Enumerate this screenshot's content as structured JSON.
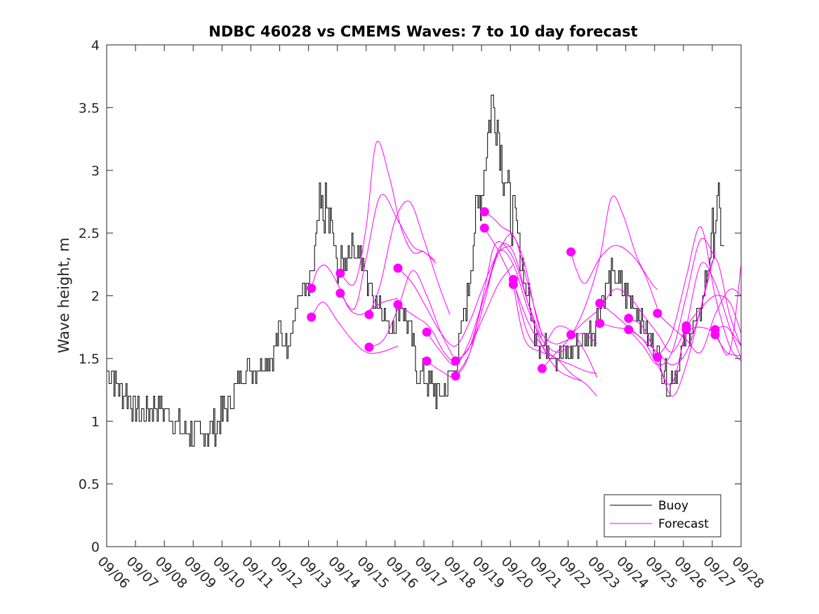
{
  "chart_data": {
    "type": "line",
    "title": "NDBC 46028 vs CMEMS Waves: 7 to 10 day forecast",
    "ylabel": "Wave height, m",
    "xlabel": "",
    "xlim": [
      0,
      22
    ],
    "ylim": [
      0,
      4
    ],
    "yticks": [
      0,
      0.5,
      1,
      1.5,
      2,
      2.5,
      3,
      3.5,
      4
    ],
    "ytick_labels": [
      "0",
      "0.5",
      "1",
      "1.5",
      "2",
      "2.5",
      "3",
      "3.5",
      "4"
    ],
    "xtick_labels": [
      "09/06",
      "09/07",
      "09/08",
      "09/09",
      "09/10",
      "09/11",
      "09/12",
      "09/13",
      "09/14",
      "09/15",
      "09/16",
      "09/17",
      "09/18",
      "09/19",
      "09/20",
      "09/21",
      "09/22",
      "09/23",
      "09/24",
      "09/25",
      "09/26",
      "09/27",
      "09/28"
    ],
    "x_unit": "days since 09/06 00:00",
    "legend": {
      "position": "bottom-right",
      "entries": [
        {
          "label": "Buoy",
          "color": "#000000"
        },
        {
          "label": "Forecast",
          "color": "#ff00ff"
        }
      ]
    },
    "buoy_anchors": [
      [
        0,
        1.4
      ],
      [
        0.25,
        1.35
      ],
      [
        0.5,
        1.25
      ],
      [
        0.75,
        1.2
      ],
      [
        1,
        1.1
      ],
      [
        1.25,
        1.05
      ],
      [
        1.5,
        1.1
      ],
      [
        1.75,
        1.15
      ],
      [
        2,
        1.1
      ],
      [
        2.25,
        1.05
      ],
      [
        2.5,
        0.97
      ],
      [
        2.75,
        0.92
      ],
      [
        3,
        0.9
      ],
      [
        3.25,
        0.88
      ],
      [
        3.5,
        0.9
      ],
      [
        3.75,
        0.95
      ],
      [
        4,
        1.05
      ],
      [
        4.25,
        1.15
      ],
      [
        4.5,
        1.3
      ],
      [
        4.75,
        1.4
      ],
      [
        5,
        1.45
      ],
      [
        5.25,
        1.45
      ],
      [
        5.5,
        1.5
      ],
      [
        5.75,
        1.55
      ],
      [
        6,
        1.7
      ],
      [
        6.25,
        1.65
      ],
      [
        6.5,
        1.85
      ],
      [
        6.75,
        2.05
      ],
      [
        7,
        2.0
      ],
      [
        7.2,
        2.3
      ],
      [
        7.4,
        2.65
      ],
      [
        7.6,
        2.7
      ],
      [
        7.8,
        2.5
      ],
      [
        8,
        2.2
      ],
      [
        8.25,
        2.3
      ],
      [
        8.5,
        2.4
      ],
      [
        8.75,
        2.35
      ],
      [
        9,
        2.15
      ],
      [
        9.25,
        2.0
      ],
      [
        9.5,
        1.95
      ],
      [
        9.75,
        1.75
      ],
      [
        10,
        1.8
      ],
      [
        10.25,
        1.95
      ],
      [
        10.5,
        1.7
      ],
      [
        10.75,
        1.4
      ],
      [
        11,
        1.35
      ],
      [
        11.25,
        1.3
      ],
      [
        11.5,
        1.2
      ],
      [
        11.75,
        1.25
      ],
      [
        12,
        1.4
      ],
      [
        12.25,
        1.65
      ],
      [
        12.5,
        2.0
      ],
      [
        12.75,
        2.5
      ],
      [
        13,
        2.85
      ],
      [
        13.2,
        3.3
      ],
      [
        13.35,
        3.55
      ],
      [
        13.5,
        3.45
      ],
      [
        13.7,
        3.1
      ],
      [
        13.9,
        2.8
      ],
      [
        14.1,
        2.6
      ],
      [
        14.3,
        2.4
      ],
      [
        14.5,
        2.1
      ],
      [
        14.75,
        1.8
      ],
      [
        15,
        1.65
      ],
      [
        15.25,
        1.6
      ],
      [
        15.5,
        1.55
      ],
      [
        15.75,
        1.5
      ],
      [
        16,
        1.55
      ],
      [
        16.25,
        1.6
      ],
      [
        16.5,
        1.65
      ],
      [
        16.75,
        1.7
      ],
      [
        17,
        1.8
      ],
      [
        17.25,
        2.05
      ],
      [
        17.5,
        2.15
      ],
      [
        17.75,
        2.1
      ],
      [
        18,
        2.0
      ],
      [
        18.25,
        1.95
      ],
      [
        18.5,
        1.85
      ],
      [
        18.75,
        1.7
      ],
      [
        19,
        1.6
      ],
      [
        19.25,
        1.45
      ],
      [
        19.5,
        1.3
      ],
      [
        19.75,
        1.4
      ],
      [
        20,
        1.6
      ],
      [
        20.25,
        1.75
      ],
      [
        20.5,
        1.8
      ],
      [
        20.75,
        2.1
      ],
      [
        21,
        2.5
      ],
      [
        21.15,
        2.7
      ],
      [
        21.3,
        2.5
      ],
      [
        21.45,
        2.3
      ]
    ],
    "forecast_series": [
      {
        "x": [
          7.1,
          7.3,
          7.6,
          8.0,
          8.4,
          8.8,
          9.2,
          9.6,
          10.1
        ],
        "y": [
          2.06,
          2.2,
          2.24,
          2.1,
          1.9,
          1.85,
          1.9,
          1.95,
          1.98
        ]
      },
      {
        "x": [
          7.1,
          7.5,
          8.0,
          8.5,
          9.0,
          9.5,
          10.1
        ],
        "y": [
          1.83,
          1.95,
          1.8,
          1.65,
          1.55,
          1.55,
          1.6
        ]
      },
      {
        "x": [
          8.1,
          8.6,
          9.0,
          9.35,
          9.8,
          10.2,
          10.6,
          11.0,
          11.4
        ],
        "y": [
          2.18,
          2.1,
          2.55,
          3.22,
          2.95,
          2.55,
          2.35,
          2.35,
          2.26
        ]
      },
      {
        "x": [
          8.1,
          8.6,
          9.0,
          9.5,
          10.1,
          10.6,
          11.0,
          11.4
        ],
        "y": [
          2.02,
          1.9,
          2.3,
          2.8,
          2.6,
          2.4,
          2.35,
          2.28
        ]
      },
      {
        "x": [
          9.1,
          9.5,
          10.0,
          10.5,
          11.0,
          11.5,
          11.9
        ],
        "y": [
          1.85,
          2.1,
          2.6,
          2.75,
          2.45,
          2.1,
          1.85
        ]
      },
      {
        "x": [
          9.1,
          9.6,
          10.1,
          10.6,
          11.1,
          11.6,
          12.1
        ],
        "y": [
          1.59,
          1.65,
          1.9,
          2.2,
          2.0,
          1.7,
          1.48
        ]
      },
      {
        "x": [
          10.1,
          10.6,
          11.1,
          11.6,
          12.1,
          12.6,
          13.1,
          13.6,
          14.1
        ],
        "y": [
          2.22,
          2.1,
          1.9,
          1.7,
          1.6,
          1.8,
          2.1,
          2.35,
          2.4
        ]
      },
      {
        "x": [
          10.1,
          10.6,
          11.2,
          11.7,
          12.1,
          12.6,
          13.1,
          13.6,
          14.1
        ],
        "y": [
          1.93,
          1.85,
          1.75,
          1.55,
          1.48,
          1.6,
          1.85,
          2.1,
          2.25
        ]
      },
      {
        "x": [
          11.1,
          11.6,
          12.1,
          12.6,
          13.1,
          13.6,
          14.1,
          14.6,
          15.1
        ],
        "y": [
          1.71,
          1.55,
          1.45,
          1.65,
          2.0,
          2.35,
          2.48,
          2.1,
          1.68
        ]
      },
      {
        "x": [
          11.1,
          11.6,
          12.1,
          12.6,
          13.1,
          13.5,
          14.1,
          14.6,
          15.1
        ],
        "y": [
          1.48,
          1.4,
          1.36,
          1.55,
          2.05,
          2.42,
          2.3,
          1.95,
          1.65
        ]
      },
      {
        "x": [
          12.1,
          12.6,
          13.1,
          13.6,
          14.1,
          14.6,
          15.1,
          15.6,
          16.1
        ],
        "y": [
          1.48,
          1.6,
          2.0,
          2.35,
          2.25,
          1.9,
          1.65,
          1.55,
          1.6
        ]
      },
      {
        "x": [
          12.1,
          12.6,
          13.1,
          13.6,
          14.1,
          14.6,
          15.1,
          15.6,
          16.1,
          16.5
        ],
        "y": [
          1.36,
          1.55,
          1.95,
          2.38,
          2.35,
          1.95,
          1.6,
          1.42,
          1.35,
          1.32
        ]
      },
      {
        "x": [
          13.1,
          13.4,
          13.7,
          14.1,
          14.5,
          15.0,
          15.5,
          16.0,
          16.5,
          17.0
        ],
        "y": [
          2.67,
          2.62,
          2.55,
          2.48,
          2.25,
          1.75,
          1.62,
          1.65,
          1.7,
          1.62
        ]
      },
      {
        "x": [
          13.1,
          13.6,
          14.1,
          14.6,
          15.1,
          15.6,
          16.1,
          16.6,
          17.0
        ],
        "y": [
          2.54,
          2.35,
          2.1,
          1.8,
          1.6,
          1.5,
          1.45,
          1.4,
          1.38
        ]
      },
      {
        "x": [
          14.1,
          14.6,
          15.1,
          15.6,
          16.1,
          16.6,
          17.0
        ],
        "y": [
          2.13,
          1.7,
          1.6,
          1.75,
          1.72,
          1.55,
          1.35
        ]
      },
      {
        "x": [
          14.1,
          14.5,
          15.1,
          15.6,
          16.1,
          16.6,
          17.0
        ],
        "y": [
          2.09,
          1.65,
          1.55,
          1.5,
          1.38,
          1.3,
          1.2
        ]
      },
      {
        "x": [
          15.1,
          15.6,
          16.1,
          16.6,
          17.1,
          17.5,
          17.9,
          18.4,
          18.9,
          19.1
        ],
        "y": [
          1.42,
          1.55,
          1.68,
          1.92,
          2.3,
          2.78,
          2.65,
          2.3,
          2.1,
          2.05
        ]
      },
      {
        "x": [
          16.1,
          16.3,
          16.6,
          17.1,
          17.6,
          18.1,
          18.6,
          19.1
        ],
        "y": [
          2.35,
          2.2,
          2.1,
          2.3,
          2.4,
          2.35,
          2.2,
          1.9
        ]
      },
      {
        "x": [
          16.1,
          16.6,
          17.1,
          17.6,
          18.1,
          18.6,
          19.1,
          19.6,
          20.1
        ],
        "y": [
          1.69,
          1.8,
          1.9,
          2.05,
          2.0,
          1.85,
          1.7,
          1.55,
          1.75
        ]
      },
      {
        "x": [
          17.1,
          17.6,
          18.1,
          18.6,
          19.1,
          19.6,
          20.1,
          20.6,
          21.1
        ],
        "y": [
          1.94,
          1.85,
          1.75,
          1.65,
          1.55,
          1.45,
          1.55,
          1.9,
          2.35
        ]
      },
      {
        "x": [
          17.1,
          17.6,
          18.1,
          18.6,
          19.1,
          19.6,
          20.1,
          20.6,
          21.1
        ],
        "y": [
          1.78,
          1.75,
          1.72,
          1.6,
          1.45,
          1.55,
          2.0,
          2.45,
          2.3
        ]
      },
      {
        "x": [
          18.1,
          18.6,
          19.1,
          19.6,
          20.1,
          20.6,
          21.1,
          21.6,
          22.0
        ],
        "y": [
          1.82,
          1.75,
          1.5,
          1.2,
          1.45,
          1.9,
          2.3,
          1.85,
          1.6
        ]
      },
      {
        "x": [
          18.1,
          18.6,
          19.1,
          19.6,
          20.1,
          20.6,
          21.1,
          21.6,
          22.0
        ],
        "y": [
          1.73,
          1.65,
          1.45,
          1.3,
          1.75,
          2.25,
          2.1,
          1.75,
          1.5
        ]
      },
      {
        "x": [
          19.1,
          19.6,
          20.1,
          20.6,
          21.1,
          21.6,
          22.0
        ],
        "y": [
          1.86,
          1.75,
          1.65,
          1.55,
          1.85,
          2.05,
          2.0
        ]
      },
      {
        "x": [
          19.1,
          19.6,
          20.1,
          20.6,
          21.1,
          21.6,
          22.0
        ],
        "y": [
          1.51,
          1.7,
          2.15,
          2.55,
          2.0,
          1.6,
          1.48
        ]
      },
      {
        "x": [
          20.1,
          20.6,
          21.1,
          21.6,
          22.0
        ],
        "y": [
          1.76,
          1.9,
          2.0,
          1.95,
          1.7
        ]
      },
      {
        "x": [
          20.1,
          20.6,
          21.1,
          21.6,
          22.0
        ],
        "y": [
          1.73,
          1.75,
          1.7,
          1.55,
          2.25
        ]
      },
      {
        "x": [
          21.1,
          21.5,
          22.0
        ],
        "y": [
          1.73,
          1.75,
          1.6
        ]
      },
      {
        "x": [
          21.1,
          21.5,
          22.0
        ],
        "y": [
          1.69,
          1.55,
          1.52
        ]
      }
    ],
    "forecast_markers": [
      {
        "x": 7.1,
        "y": 2.06
      },
      {
        "x": 7.1,
        "y": 1.83
      },
      {
        "x": 8.1,
        "y": 2.18
      },
      {
        "x": 8.1,
        "y": 2.02
      },
      {
        "x": 9.1,
        "y": 1.85
      },
      {
        "x": 9.1,
        "y": 1.59
      },
      {
        "x": 10.1,
        "y": 2.22
      },
      {
        "x": 10.1,
        "y": 1.93
      },
      {
        "x": 11.1,
        "y": 1.71
      },
      {
        "x": 11.1,
        "y": 1.48
      },
      {
        "x": 12.1,
        "y": 1.48
      },
      {
        "x": 12.1,
        "y": 1.36
      },
      {
        "x": 13.1,
        "y": 2.67
      },
      {
        "x": 13.1,
        "y": 2.54
      },
      {
        "x": 14.1,
        "y": 2.13
      },
      {
        "x": 14.1,
        "y": 2.09
      },
      {
        "x": 15.1,
        "y": 1.42
      },
      {
        "x": 16.1,
        "y": 2.35
      },
      {
        "x": 16.1,
        "y": 1.69
      },
      {
        "x": 17.1,
        "y": 1.94
      },
      {
        "x": 17.1,
        "y": 1.78
      },
      {
        "x": 18.1,
        "y": 1.82
      },
      {
        "x": 18.1,
        "y": 1.73
      },
      {
        "x": 19.1,
        "y": 1.86
      },
      {
        "x": 19.1,
        "y": 1.51
      },
      {
        "x": 20.1,
        "y": 1.76
      },
      {
        "x": 20.1,
        "y": 1.73
      },
      {
        "x": 21.1,
        "y": 1.73
      },
      {
        "x": 21.1,
        "y": 1.69
      }
    ]
  }
}
